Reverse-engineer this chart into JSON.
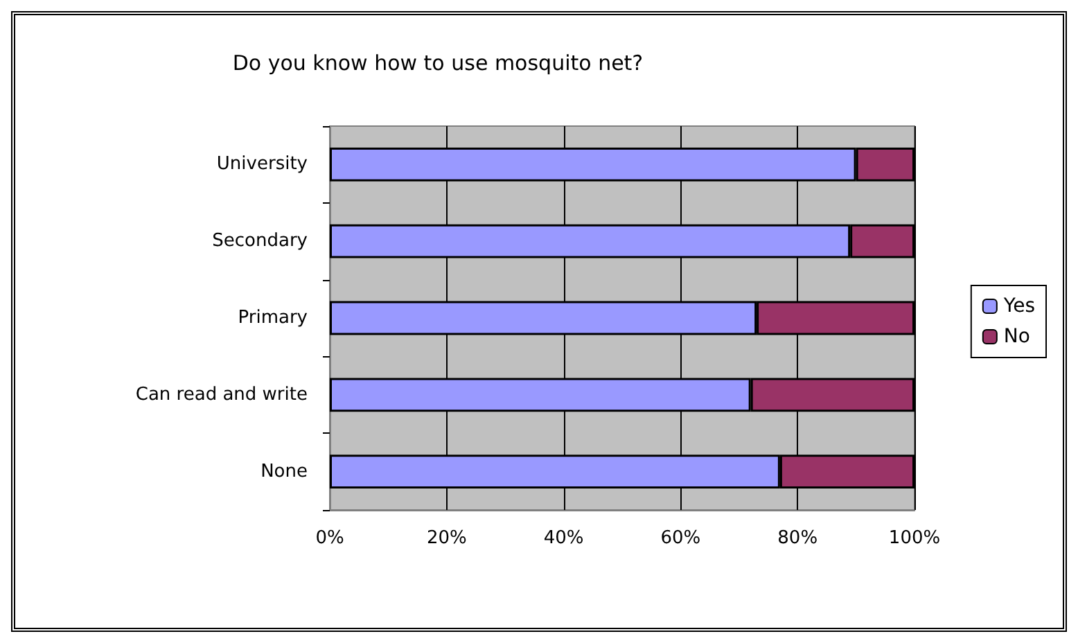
{
  "chart_data": {
    "type": "bar",
    "orientation": "horizontal",
    "stacked": true,
    "title": "Do you know how to use mosquito net?",
    "categories": [
      "University",
      "Secondary",
      "Primary",
      "Can read and write",
      "None"
    ],
    "series": [
      {
        "name": "Yes",
        "color": "#9999ff",
        "values": [
          90,
          89,
          73,
          72,
          77
        ]
      },
      {
        "name": "No",
        "color": "#993366",
        "values": [
          10,
          11,
          27,
          28,
          23
        ]
      }
    ],
    "xlim": [
      0,
      100
    ],
    "xticks": [
      {
        "value": 0,
        "label": "0%"
      },
      {
        "value": 20,
        "label": "20%"
      },
      {
        "value": 40,
        "label": "40%"
      },
      {
        "value": 60,
        "label": "60%"
      },
      {
        "value": 80,
        "label": "80%"
      },
      {
        "value": 100,
        "label": "100%"
      }
    ],
    "grid": "x",
    "legend": "right"
  }
}
